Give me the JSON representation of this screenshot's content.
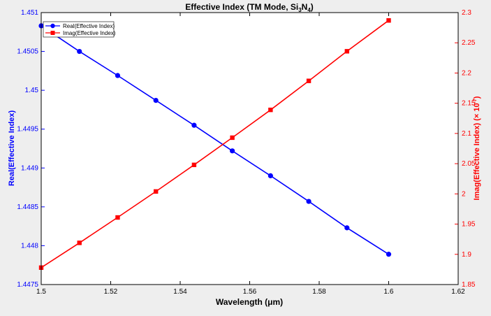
{
  "chart_data": {
    "type": "line",
    "title": {
      "prefix": "Effective Index (TM Mode, Si",
      "sub1": "3",
      "mid": "N",
      "sub2": "4",
      "suffix": ")"
    },
    "xlabel": "Wavelength (μm)",
    "ylabel_left": "Real(Effective Index)",
    "ylabel_right": {
      "text": "Imag(Effective Index)  (× 10",
      "exponent": "-7",
      "close": ")"
    },
    "xlim": [
      1.5,
      1.62
    ],
    "xticks": [
      "1.5",
      "1.52",
      "1.54",
      "1.56",
      "1.58",
      "1.6",
      "1.62"
    ],
    "ylim_left": [
      1.4475,
      1.451
    ],
    "yticks_left": [
      "1.4475",
      "1.448",
      "1.4485",
      "1.449",
      "1.4495",
      "1.45",
      "1.4505",
      "1.451"
    ],
    "ylim_right": [
      1.85,
      2.3
    ],
    "yticks_right": [
      "1.85",
      "1.9",
      "1.95",
      "2",
      "2.05",
      "2.1",
      "2.15",
      "2.2",
      "2.25",
      "2.3"
    ],
    "grid": false,
    "legend_position": "top-left",
    "x": [
      1.5,
      1.511,
      1.522,
      1.533,
      1.544,
      1.555,
      1.566,
      1.577,
      1.588,
      1.6
    ],
    "series": [
      {
        "name": "Real(Effective Index)",
        "axis": "left",
        "color": "#0000ff",
        "marker": "circle",
        "values": [
          1.45083,
          1.4505,
          1.45019,
          1.44987,
          1.44955,
          1.44922,
          1.4489,
          1.44857,
          1.44823,
          1.44789
        ]
      },
      {
        "name": "Imag(Effective Index)",
        "axis": "right",
        "color": "#ff0000",
        "marker": "square",
        "values": [
          1.878,
          1.919,
          1.961,
          2.004,
          2.048,
          2.093,
          2.139,
          2.187,
          2.236,
          2.287
        ]
      }
    ]
  }
}
